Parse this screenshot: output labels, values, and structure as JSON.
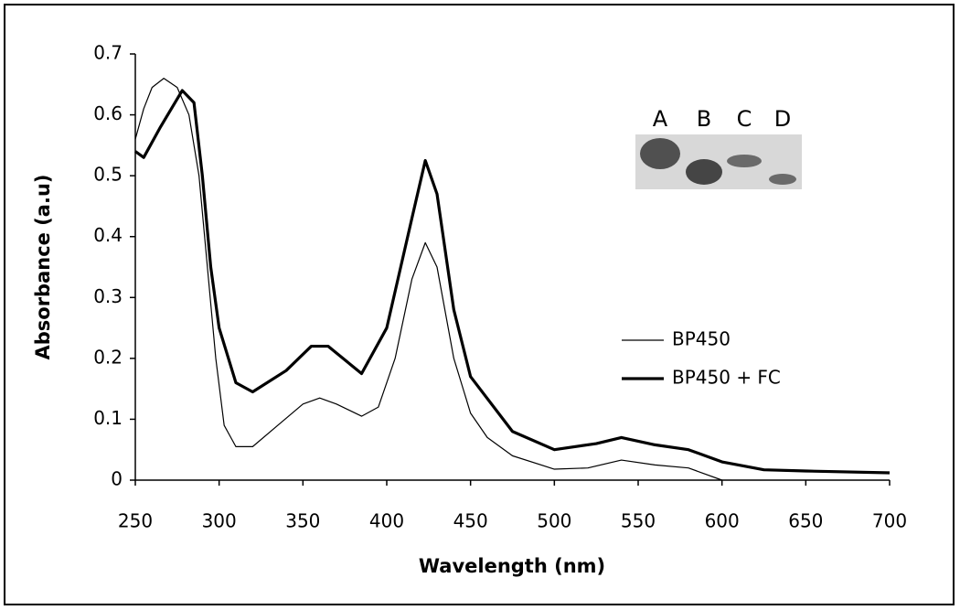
{
  "chart_data": {
    "type": "line",
    "x_label": "Wavelength (nm)",
    "y_label": "Absorbance (a.u)",
    "xlim": [
      250,
      700
    ],
    "xticks": [
      250,
      300,
      350,
      400,
      450,
      500,
      550,
      600,
      650,
      700
    ],
    "ylim": [
      0,
      0.7
    ],
    "yticks": [
      0,
      0.1,
      0.2,
      0.3,
      0.4,
      0.5,
      0.6,
      0.7
    ],
    "grid": false,
    "legend": "right",
    "inset_labels": [
      "A",
      "B",
      "C",
      "D"
    ],
    "series": [
      {
        "name": "BP450",
        "color": "#000000",
        "width": 1.2,
        "x": [
          250,
          255,
          260,
          267,
          275,
          282,
          288,
          293,
          298,
          303,
          310,
          320,
          335,
          350,
          360,
          370,
          385,
          395,
          405,
          415,
          423,
          430,
          440,
          450,
          460,
          475,
          500,
          520,
          540,
          560,
          580,
          600
        ],
        "values": [
          0.56,
          0.61,
          0.645,
          0.66,
          0.645,
          0.6,
          0.5,
          0.35,
          0.2,
          0.09,
          0.055,
          0.055,
          0.09,
          0.125,
          0.135,
          0.125,
          0.105,
          0.12,
          0.2,
          0.33,
          0.39,
          0.35,
          0.2,
          0.11,
          0.07,
          0.04,
          0.018,
          0.02,
          0.033,
          0.025,
          0.02,
          0
        ]
      },
      {
        "name": "BP450 + FC",
        "color": "#000000",
        "width": 3.2,
        "x": [
          250,
          255,
          265,
          278,
          285,
          290,
          295,
          300,
          310,
          320,
          340,
          355,
          365,
          385,
          400,
          415,
          423,
          430,
          440,
          450,
          475,
          500,
          525,
          540,
          560,
          580,
          600,
          625,
          650,
          700
        ],
        "values": [
          0.54,
          0.53,
          0.58,
          0.64,
          0.62,
          0.5,
          0.35,
          0.25,
          0.16,
          0.145,
          0.18,
          0.22,
          0.22,
          0.175,
          0.25,
          0.43,
          0.525,
          0.47,
          0.28,
          0.17,
          0.08,
          0.05,
          0.06,
          0.07,
          0.058,
          0.05,
          0.03,
          0.017,
          0.015,
          0.012
        ]
      }
    ]
  }
}
